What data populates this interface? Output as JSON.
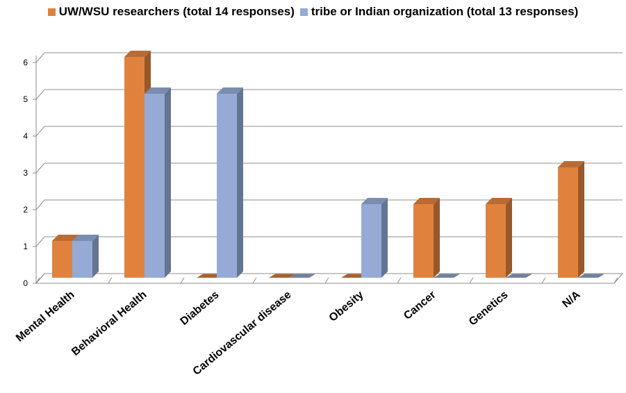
{
  "chart_data": {
    "type": "bar",
    "title": "",
    "xlabel": "",
    "ylabel": "",
    "categories": [
      "Mental Health",
      "Behavioral Health",
      "Diabetes",
      "Cardiovascular disease",
      "Obesity",
      "Cancer",
      "Genetics",
      "N/A"
    ],
    "series": [
      {
        "name": "UW/WSU researchers (total 14 responses)",
        "values": [
          1,
          6,
          0,
          0,
          0,
          2,
          2,
          3
        ],
        "color": "#E0823D"
      },
      {
        "name": "tribe or Indian organization (total 13 responses)",
        "values": [
          1,
          5,
          5,
          0,
          2,
          0,
          0,
          0
        ],
        "color": "#95ABD5"
      }
    ],
    "yticks": [
      "0",
      "1",
      "2",
      "3",
      "4",
      "5",
      "6"
    ],
    "ylim": [
      0,
      6
    ],
    "grid": true,
    "legend_position": "top",
    "style": "3d-clustered-column"
  }
}
